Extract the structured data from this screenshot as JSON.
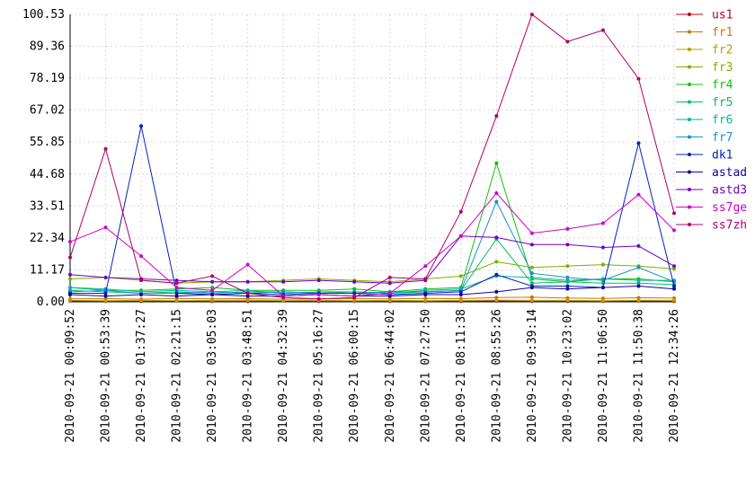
{
  "chart_data": {
    "type": "line",
    "title": "",
    "xlabel": "",
    "ylabel": "",
    "ylim": [
      0,
      100.53
    ],
    "grid": true,
    "legend_position": "right",
    "y_ticks": [
      "0.00",
      "11.17",
      "22.34",
      "33.51",
      "44.68",
      "55.85",
      "67.02",
      "78.19",
      "89.36",
      "100.53"
    ],
    "x_ticks": [
      "2010-09-21 00:09:52",
      "2010-09-21 00:53:39",
      "2010-09-21 01:37:27",
      "2010-09-21 02:21:15",
      "2010-09-21 03:05:03",
      "2010-09-21 03:48:51",
      "2010-09-21 04:32:39",
      "2010-09-21 05:16:27",
      "2010-09-21 06:00:15",
      "2010-09-21 06:44:02",
      "2010-09-21 07:27:50",
      "2010-09-21 08:11:38",
      "2010-09-21 08:55:26",
      "2010-09-21 09:39:14",
      "2010-09-21 10:23:02",
      "2010-09-21 11:06:50",
      "2010-09-21 11:50:38",
      "2010-09-21 12:34:26"
    ],
    "series": [
      {
        "name": "us1",
        "color": "#c0001a",
        "values": [
          0.3,
          0.2,
          0.2,
          0.3,
          0.2,
          0.2,
          0.3,
          0.2,
          0.2,
          0.2,
          0.2,
          0.2,
          0.3,
          0.2,
          0.2,
          0.2,
          0.3,
          0.2
        ]
      },
      {
        "name": "fr1",
        "color": "#c87800",
        "values": [
          1.0,
          1.1,
          0.9,
          1.2,
          1.0,
          1.1,
          0.9,
          1.0,
          1.1,
          1.0,
          1.2,
          1.1,
          1.5,
          1.6,
          1.3,
          1.2,
          1.4,
          1.3
        ]
      },
      {
        "name": "fr2",
        "color": "#b0a000",
        "values": [
          0.5,
          0.4,
          0.5,
          0.4,
          0.5,
          0.6,
          0.4,
          0.5,
          0.4,
          0.5,
          0.4,
          0.5,
          0.6,
          0.5,
          0.5,
          0.4,
          0.5,
          0.5
        ]
      },
      {
        "name": "fr3",
        "color": "#78b000",
        "values": [
          8.0,
          8.5,
          7.5,
          6.5,
          7.0,
          7.0,
          7.5,
          8.0,
          7.5,
          7.0,
          8.0,
          9.0,
          14.0,
          12.0,
          12.5,
          13.0,
          12.5,
          11.5
        ]
      },
      {
        "name": "fr4",
        "color": "#10c010",
        "values": [
          5.0,
          4.0,
          4.0,
          4.5,
          5.0,
          4.0,
          4.0,
          4.0,
          4.5,
          3.5,
          4.5,
          5.0,
          48.5,
          8.0,
          7.0,
          8.0,
          8.0,
          7.0
        ]
      },
      {
        "name": "fr5",
        "color": "#00c060",
        "values": [
          4.0,
          3.5,
          3.0,
          3.5,
          3.0,
          3.5,
          3.5,
          3.0,
          3.5,
          3.0,
          3.5,
          4.0,
          22.0,
          6.5,
          7.0,
          6.5,
          6.5,
          6.0
        ]
      },
      {
        "name": "fr6",
        "color": "#00b8a0",
        "values": [
          5.0,
          4.5,
          3.5,
          4.0,
          3.5,
          4.0,
          3.0,
          3.5,
          3.5,
          3.0,
          4.0,
          4.5,
          9.0,
          8.5,
          7.5,
          8.0,
          7.5,
          7.5
        ]
      },
      {
        "name": "fr7",
        "color": "#1890d0",
        "values": [
          3.5,
          4.0,
          3.0,
          3.0,
          3.5,
          3.0,
          3.5,
          3.0,
          3.0,
          3.5,
          3.5,
          4.0,
          35.0,
          10.0,
          8.5,
          7.5,
          12.0,
          7.0
        ]
      },
      {
        "name": "dk1",
        "color": "#0020c0",
        "values": [
          3.0,
          3.0,
          61.5,
          3.0,
          2.5,
          3.0,
          2.5,
          3.0,
          3.0,
          2.5,
          3.0,
          3.5,
          9.5,
          5.5,
          5.5,
          5.0,
          55.5,
          5.5
        ]
      },
      {
        "name": "astad",
        "color": "#1000a0",
        "values": [
          2.5,
          2.0,
          2.5,
          2.0,
          2.5,
          2.0,
          2.0,
          2.5,
          2.0,
          2.0,
          2.5,
          2.5,
          3.5,
          5.0,
          4.5,
          5.0,
          5.5,
          4.5
        ]
      },
      {
        "name": "astd3",
        "color": "#7000c0",
        "values": [
          9.5,
          8.5,
          8.0,
          7.5,
          7.0,
          7.0,
          7.0,
          7.5,
          7.0,
          6.5,
          7.5,
          23.0,
          22.5,
          20.0,
          20.0,
          19.0,
          19.5,
          12.5
        ]
      },
      {
        "name": "ss7ge",
        "color": "#d000c8",
        "values": [
          21.0,
          26.0,
          16.0,
          5.0,
          4.0,
          13.0,
          2.0,
          2.5,
          2.0,
          3.0,
          12.5,
          23.0,
          38.0,
          24.0,
          25.5,
          27.5,
          37.5,
          25.0
        ]
      },
      {
        "name": "ss7zh",
        "color": "#b0006a",
        "values": [
          15.5,
          53.5,
          7.5,
          6.5,
          9.0,
          3.0,
          1.5,
          1.0,
          1.5,
          8.5,
          8.0,
          31.5,
          65.0,
          100.5,
          91.0,
          95.0,
          78.0,
          31.0
        ]
      }
    ]
  }
}
